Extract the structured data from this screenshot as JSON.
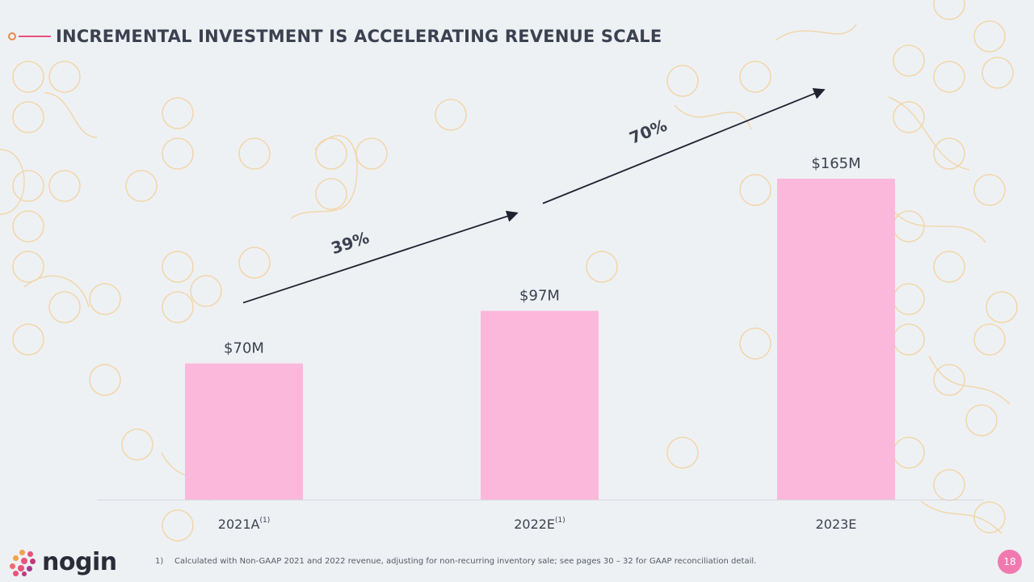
{
  "slide": {
    "title": "INCREMENTAL INVESTMENT IS ACCELERATING REVENUE SCALE",
    "footnote_number": "1)",
    "footnote_text": "Calculated with Non-GAAP 2021 and 2022 revenue, adjusting for non-recurring inventory sale; see pages 30 – 32 for GAAP reconciliation detail.",
    "page_number": "18",
    "logo_text": "nogin"
  },
  "colors": {
    "bar": "#fcb8db",
    "text": "#3c4150",
    "accent_pink": "#e8527d",
    "accent_orange": "#e8884a",
    "pattern": "#f1d7ad",
    "page_badge": "#f07ab0"
  },
  "chart_data": {
    "type": "bar",
    "categories": [
      "2021A",
      "2022E",
      "2023E"
    ],
    "category_superscripts": [
      "(1)",
      "(1)",
      ""
    ],
    "values": [
      70,
      97,
      165
    ],
    "value_labels": [
      "$70M",
      "$97M",
      "$165M"
    ],
    "unit": "$M",
    "ylim": [
      0,
      180
    ],
    "growth_annotations": [
      {
        "from": "2021A",
        "to": "2022E",
        "label": "39%"
      },
      {
        "from": "2022E",
        "to": "2023E",
        "label": "70%"
      }
    ],
    "title": "",
    "xlabel": "",
    "ylabel": ""
  }
}
